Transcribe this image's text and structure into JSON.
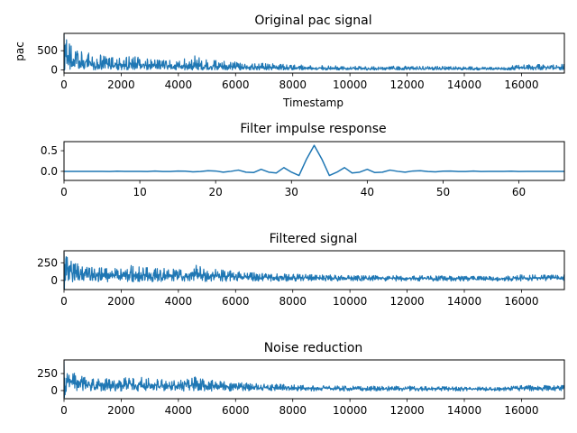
{
  "series_color": "#1f77b4",
  "chart_data": [
    {
      "type": "line",
      "title": "Original pac signal",
      "xlabel": "Timestamp",
      "ylabel": "pac",
      "xlim": [
        0,
        17500
      ],
      "ylim": [
        -80,
        950
      ],
      "xticks": [
        0,
        2000,
        4000,
        6000,
        8000,
        10000,
        12000,
        14000,
        16000
      ],
      "yticks": [
        0,
        500
      ],
      "grid": false,
      "envelope": {
        "x": [
          0,
          300,
          1000,
          2000,
          2400,
          3000,
          4000,
          4600,
          5000,
          6000,
          7000,
          8000,
          9000,
          10000,
          12000,
          14000,
          15200,
          16000,
          17500
        ],
        "upper": [
          950,
          560,
          420,
          320,
          360,
          300,
          260,
          390,
          270,
          210,
          170,
          140,
          120,
          100,
          100,
          90,
          70,
          140,
          150
        ],
        "base": [
          100,
          150,
          100,
          80,
          90,
          80,
          70,
          90,
          70,
          55,
          50,
          40,
          35,
          30,
          30,
          30,
          25,
          45,
          50
        ],
        "lower": [
          0,
          20,
          0,
          0,
          0,
          0,
          0,
          0,
          0,
          0,
          0,
          0,
          0,
          0,
          0,
          0,
          0,
          0,
          0
        ]
      }
    },
    {
      "type": "line",
      "title": "Filter impulse response",
      "xlabel": "",
      "ylabel": "",
      "xlim": [
        0,
        66
      ],
      "ylim": [
        -0.22,
        0.72
      ],
      "xticks": [
        0,
        10,
        20,
        30,
        40,
        50,
        60
      ],
      "yticks": [
        0.5,
        0.0
      ],
      "ytick_labels": [
        "0.5",
        "0.0"
      ],
      "grid": false,
      "x": [
        0,
        1,
        2,
        3,
        4,
        5,
        6,
        7,
        8,
        9,
        10,
        11,
        12,
        13,
        14,
        15,
        16,
        17,
        18,
        19,
        20,
        21,
        22,
        23,
        24,
        25,
        26,
        27,
        28,
        29,
        30,
        31,
        32,
        33,
        34,
        35,
        36,
        37,
        38,
        39,
        40,
        41,
        42,
        43,
        44,
        45,
        46,
        47,
        48,
        49,
        50,
        51,
        52,
        53,
        54,
        55,
        56,
        57,
        58,
        59,
        60,
        61,
        62,
        63,
        64,
        65,
        66
      ],
      "y": [
        0,
        0,
        0,
        0,
        0,
        0,
        -0.003,
        0.003,
        0,
        0,
        0,
        -0.005,
        0.006,
        -0.004,
        -0.005,
        0.008,
        0.005,
        -0.012,
        -0.005,
        0.015,
        0.008,
        -0.02,
        0.0,
        0.03,
        -0.02,
        -0.03,
        0.05,
        -0.02,
        -0.04,
        0.09,
        -0.02,
        -0.1,
        0.3,
        0.63,
        0.3,
        -0.1,
        -0.02,
        0.09,
        -0.04,
        -0.02,
        0.05,
        -0.03,
        -0.02,
        0.03,
        0.0,
        -0.02,
        0.008,
        0.015,
        -0.005,
        -0.012,
        0.005,
        0.008,
        -0.005,
        -0.004,
        0.006,
        -0.005,
        0,
        0,
        0,
        0.003,
        -0.003,
        0,
        0,
        0,
        0,
        0,
        0
      ]
    },
    {
      "type": "line",
      "title": "Filtered signal",
      "xlabel": "",
      "ylabel": "",
      "xlim": [
        0,
        17500
      ],
      "ylim": [
        -130,
        420
      ],
      "xticks": [
        0,
        2000,
        4000,
        6000,
        8000,
        10000,
        12000,
        14000,
        16000
      ],
      "yticks": [
        0,
        250
      ],
      "grid": false,
      "envelope": {
        "x": [
          0,
          200,
          800,
          2000,
          2400,
          3000,
          4000,
          4600,
          5000,
          6000,
          7000,
          8000,
          9000,
          10000,
          12000,
          14000,
          15200,
          16000,
          17500
        ],
        "upper": [
          400,
          300,
          190,
          170,
          220,
          180,
          160,
          220,
          170,
          130,
          100,
          90,
          80,
          70,
          70,
          60,
          55,
          80,
          80
        ],
        "base": [
          100,
          140,
          90,
          70,
          80,
          70,
          60,
          80,
          60,
          50,
          45,
          40,
          35,
          30,
          30,
          28,
          25,
          40,
          40
        ],
        "lower": [
          -130,
          -20,
          -20,
          -20,
          -20,
          -20,
          -15,
          -15,
          -15,
          -15,
          -12,
          -12,
          -10,
          -10,
          -10,
          -10,
          -8,
          -10,
          -10
        ]
      }
    },
    {
      "type": "line",
      "title": "Noise reduction",
      "xlabel": "",
      "ylabel": "",
      "xlim": [
        0,
        17500
      ],
      "ylim": [
        -120,
        450
      ],
      "xticks": [
        0,
        2000,
        4000,
        6000,
        8000,
        10000,
        12000,
        14000,
        16000
      ],
      "yticks": [
        0,
        250
      ],
      "grid": false,
      "envelope": {
        "x": [
          0,
          200,
          800,
          2000,
          2400,
          3000,
          4000,
          4600,
          5000,
          6000,
          7000,
          8000,
          9000,
          10000,
          12000,
          14000,
          15200,
          16000,
          17500
        ],
        "upper": [
          430,
          280,
          190,
          170,
          220,
          180,
          150,
          200,
          160,
          120,
          100,
          85,
          75,
          65,
          65,
          55,
          50,
          75,
          75
        ],
        "base": [
          100,
          140,
          90,
          70,
          80,
          70,
          60,
          80,
          60,
          50,
          45,
          40,
          35,
          30,
          30,
          28,
          25,
          40,
          40
        ],
        "lower": [
          -100,
          -10,
          -10,
          -10,
          -10,
          -10,
          -8,
          -8,
          -8,
          -8,
          -8,
          -6,
          -6,
          -6,
          -6,
          -6,
          -5,
          -6,
          -6
        ]
      }
    }
  ]
}
